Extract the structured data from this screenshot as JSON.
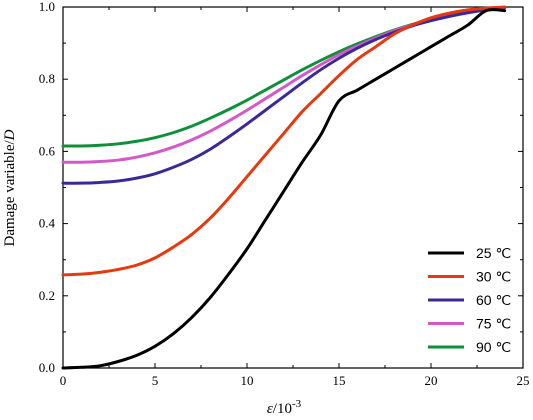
{
  "chart_data": {
    "type": "line",
    "title": "",
    "xlabel": {
      "symbol": "ε",
      "unit": "/10",
      "exponent": "-3"
    },
    "ylabel": {
      "text": "Damage variable/",
      "symbol": "D"
    },
    "xlim": [
      0,
      25
    ],
    "ylim": [
      0,
      1.0
    ],
    "xticks": [
      "0",
      "5",
      "10",
      "15",
      "20",
      "25"
    ],
    "yticks": [
      "0.0",
      "0.2",
      "0.4",
      "0.6",
      "0.8",
      "1.0"
    ],
    "grid": false,
    "legend_position": "bottom-right",
    "series": [
      {
        "name": "25 ℃",
        "color": "#000000",
        "x": [
          0,
          1,
          2,
          3,
          4,
          5,
          6,
          7,
          8,
          9,
          10,
          11,
          12,
          13,
          14,
          15,
          16,
          17,
          18,
          19,
          20,
          21,
          22,
          23,
          24
        ],
        "y": [
          0.0,
          0.002,
          0.006,
          0.018,
          0.035,
          0.06,
          0.095,
          0.14,
          0.195,
          0.26,
          0.33,
          0.41,
          0.49,
          0.57,
          0.645,
          0.74,
          0.77,
          0.8,
          0.83,
          0.86,
          0.89,
          0.92,
          0.95,
          0.99,
          0.99
        ]
      },
      {
        "name": "30 ℃",
        "color": "#e8380d",
        "x": [
          0,
          1,
          2,
          3,
          4,
          5,
          6,
          7,
          8,
          9,
          10,
          11,
          12,
          13,
          14,
          15,
          16,
          17,
          18,
          19,
          20,
          21,
          22,
          23,
          24
        ],
        "y": [
          0.258,
          0.26,
          0.265,
          0.273,
          0.285,
          0.305,
          0.335,
          0.37,
          0.415,
          0.47,
          0.53,
          0.59,
          0.65,
          0.71,
          0.76,
          0.81,
          0.855,
          0.89,
          0.925,
          0.95,
          0.97,
          0.983,
          0.992,
          0.997,
          1.0
        ]
      },
      {
        "name": "60 ℃",
        "color": "#3a2a96",
        "x": [
          0,
          1,
          2,
          3,
          4,
          5,
          6,
          7,
          8,
          9,
          10,
          11,
          12,
          13,
          14,
          15,
          16,
          17,
          18,
          19,
          20,
          21,
          22,
          23,
          24
        ],
        "y": [
          0.512,
          0.512,
          0.514,
          0.518,
          0.526,
          0.538,
          0.556,
          0.578,
          0.606,
          0.64,
          0.676,
          0.714,
          0.752,
          0.79,
          0.826,
          0.858,
          0.886,
          0.91,
          0.93,
          0.948,
          0.962,
          0.974,
          0.984,
          0.992,
          0.998
        ]
      },
      {
        "name": "75 ℃",
        "color": "#d458c8",
        "x": [
          0,
          1,
          2,
          3,
          4,
          5,
          6,
          7,
          8,
          9,
          10,
          11,
          12,
          13,
          14,
          15,
          16,
          17,
          18,
          19,
          20,
          21,
          22,
          23,
          24
        ],
        "y": [
          0.57,
          0.57,
          0.572,
          0.576,
          0.584,
          0.596,
          0.612,
          0.632,
          0.656,
          0.684,
          0.714,
          0.746,
          0.778,
          0.81,
          0.84,
          0.868,
          0.892,
          0.914,
          0.934,
          0.95,
          0.964,
          0.976,
          0.986,
          0.993,
          0.998
        ]
      },
      {
        "name": "90 ℃",
        "color": "#0f8f3a",
        "x": [
          0,
          1,
          2,
          3,
          4,
          5,
          6,
          7,
          8,
          9,
          10,
          11,
          12,
          13,
          14,
          15,
          16,
          17,
          18,
          19,
          20,
          21,
          22,
          23,
          24
        ],
        "y": [
          0.615,
          0.615,
          0.617,
          0.621,
          0.628,
          0.638,
          0.652,
          0.67,
          0.692,
          0.716,
          0.742,
          0.77,
          0.798,
          0.826,
          0.852,
          0.876,
          0.898,
          0.918,
          0.936,
          0.952,
          0.966,
          0.978,
          0.988,
          0.995,
          0.999
        ]
      }
    ]
  }
}
